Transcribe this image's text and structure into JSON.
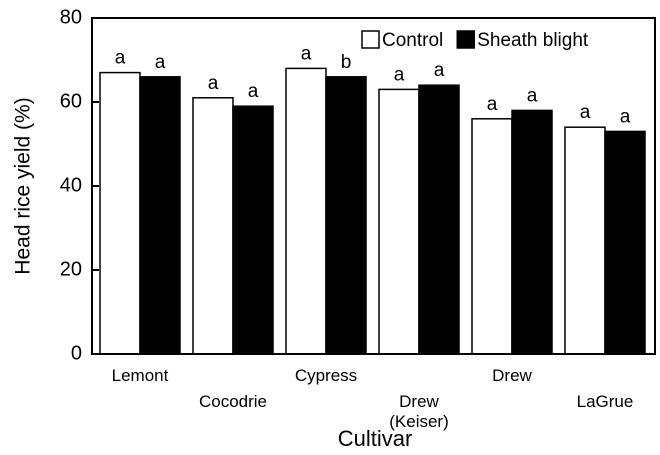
{
  "chart_data": {
    "type": "bar",
    "x_label": "Cultivar",
    "y_label": "Head rice yield (%)",
    "categories": [
      "Lemont",
      "Cocodrie",
      "Cypress",
      "Drew (Keiser)",
      "Drew",
      "LaGrue"
    ],
    "series": [
      {
        "name": "Control",
        "color": "#ffffff",
        "values": [
          67,
          61,
          68,
          63,
          56,
          54
        ],
        "letters": [
          "a",
          "a",
          "a",
          "a",
          "a",
          "a"
        ]
      },
      {
        "name": "Sheath blight",
        "color": "#000000",
        "values": [
          66,
          59,
          66,
          64,
          58,
          53
        ],
        "letters": [
          "a",
          "a",
          "b",
          "a",
          "a",
          "a"
        ]
      }
    ],
    "ylim": [
      0,
      80
    ],
    "yticks": [
      0,
      20,
      40,
      60,
      80
    ],
    "legend": "upper right"
  }
}
